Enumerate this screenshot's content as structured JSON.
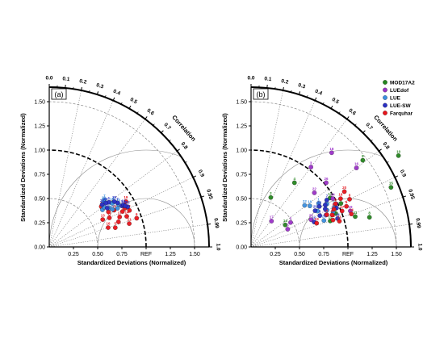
{
  "figure": {
    "panels": [
      {
        "letter": "(a)",
        "legend": false
      },
      {
        "letter": "(b)",
        "legend": true
      }
    ],
    "common": {
      "xlabel": "Standardized Deviations (Normalized)",
      "ylabel": "Standardized Deviations (Normalized)",
      "correlation_label": "Correlation",
      "ref_label": "REF",
      "sd_ticks": [
        "0.00",
        "0.25",
        "0.50",
        "0.75",
        "1.00",
        "1.25",
        "1.50"
      ],
      "x_ticks": [
        "0.25",
        "0.50",
        "0.75",
        "1.00",
        "1.25",
        "1.50"
      ],
      "corr_ticks": [
        "0.0",
        "0.1",
        "0.2",
        "0.3",
        "0.4",
        "0.5",
        "0.6",
        "0.7",
        "0.8",
        "0.9",
        "0.95",
        "0.99",
        "1.0"
      ]
    }
  },
  "chart_data": [
    {
      "type": "scatter",
      "subtype": "taylor-diagram",
      "panel": "(a)",
      "xlabel": "Standardized Deviations (Normalized)",
      "ylabel": "Standardized Deviations (Normalized)",
      "sd_range": [
        0,
        1.65
      ],
      "reference_sd": 1.0,
      "colors": {
        "Farquhar": "#e8141b",
        "LUE": "#3a8fe0",
        "LUE-SW": "#2a2fc4"
      },
      "series": [
        {
          "name": "Farquhar",
          "points": [
            {
              "sd": 0.92,
              "r": 0.86,
              "label": "19"
            },
            {
              "sd": 0.79,
              "r": 0.92,
              "label": "17"
            },
            {
              "sd": 0.86,
              "r": 0.93,
              "label": "14"
            },
            {
              "sd": 0.62,
              "r": 0.89,
              "label": "13"
            },
            {
              "sd": 0.95,
              "r": 0.95,
              "label": "6"
            },
            {
              "sd": 0.71,
              "r": 0.86,
              "label": "12"
            },
            {
              "sd": 0.68,
              "r": 0.79,
              "label": "4"
            },
            {
              "sd": 0.84,
              "r": 0.9,
              "label": "8"
            },
            {
              "sd": 0.88,
              "r": 0.89,
              "label": "20"
            },
            {
              "sd": 0.76,
              "r": 0.94,
              "label": "9"
            },
            {
              "sd": 0.64,
              "r": 0.95,
              "label": "16"
            },
            {
              "sd": 0.86,
              "r": 0.96,
              "label": "21"
            },
            {
              "sd": 0.71,
              "r": 0.96,
              "label": "5"
            },
            {
              "sd": 0.91,
              "r": 0.91,
              "label": "2"
            },
            {
              "sd": 0.69,
              "r": 0.9,
              "label": "11"
            },
            {
              "sd": 0.77,
              "r": 0.87,
              "label": "15"
            }
          ]
        },
        {
          "name": "LUE",
          "points": [
            {
              "sd": 0.81,
              "r": 0.82,
              "label": "1"
            },
            {
              "sd": 0.74,
              "r": 0.84,
              "label": "3"
            },
            {
              "sd": 0.75,
              "r": 0.76,
              "label": "7"
            },
            {
              "sd": 0.79,
              "r": 0.82,
              "label": "10"
            },
            {
              "sd": 0.76,
              "r": 0.86,
              "label": "18"
            },
            {
              "sd": 0.73,
              "r": 0.77,
              "label": "22"
            },
            {
              "sd": 0.67,
              "r": 0.82,
              "label": "23"
            },
            {
              "sd": 0.81,
              "r": 0.87,
              "label": "24"
            },
            {
              "sd": 0.84,
              "r": 0.85,
              "label": "25"
            },
            {
              "sd": 0.7,
              "r": 0.81,
              "label": "26"
            }
          ]
        },
        {
          "name": "LUE-SW",
          "points": [
            {
              "sd": 0.77,
              "r": 0.8,
              "label": "1"
            },
            {
              "sd": 0.86,
              "r": 0.87,
              "label": "3"
            },
            {
              "sd": 0.84,
              "r": 0.84,
              "label": "7"
            },
            {
              "sd": 0.74,
              "r": 0.79,
              "label": "10"
            },
            {
              "sd": 0.88,
              "r": 0.87,
              "label": "18"
            },
            {
              "sd": 0.72,
              "r": 0.83,
              "label": "22"
            },
            {
              "sd": 0.91,
              "r": 0.89,
              "label": "23"
            },
            {
              "sd": 0.7,
              "r": 0.78,
              "label": "24"
            },
            {
              "sd": 0.82,
              "r": 0.82,
              "label": "25"
            },
            {
              "sd": 0.89,
              "r": 0.88,
              "label": "26"
            }
          ]
        }
      ]
    },
    {
      "type": "scatter",
      "subtype": "taylor-diagram",
      "panel": "(b)",
      "xlabel": "Standardized Deviations (Normalized)",
      "ylabel": "Standardized Deviations (Normalized)",
      "sd_range": [
        0,
        1.65
      ],
      "reference_sd": 1.0,
      "legend": {
        "position": "top-right",
        "entries": [
          "MOD17A2",
          "LUEdof",
          "LUE",
          "LUE-SW",
          "Farquhar"
        ]
      },
      "colors": {
        "MOD17A2": "#25851f",
        "LUEdof": "#9b32c8",
        "LUE": "#3a8fe0",
        "LUE-SW": "#2a2fc4",
        "Farquhar": "#e8141b"
      },
      "series": [
        {
          "name": "MOD17A2",
          "points": [
            {
              "sd": 1.79,
              "r": 0.85,
              "label": "10"
            },
            {
              "sd": 1.46,
              "r": 0.79,
              "label": "9"
            },
            {
              "sd": 1.57,
              "r": 0.92,
              "label": "15"
            },
            {
              "sd": 1.26,
              "r": 0.97,
              "label": "8"
            },
            {
              "sd": 0.55,
              "r": 0.37,
              "label": "2"
            },
            {
              "sd": 0.94,
              "r": 0.93,
              "label": "6"
            },
            {
              "sd": 1.03,
              "r": 0.9,
              "label": "7"
            },
            {
              "sd": 1.12,
              "r": 0.96,
              "label": "11"
            },
            {
              "sd": 0.8,
              "r": 0.56,
              "label": "4"
            },
            {
              "sd": 0.96,
              "r": 0.85,
              "label": "12"
            },
            {
              "sd": 0.86,
              "r": 0.95,
              "label": "13"
            },
            {
              "sd": 0.42,
              "r": 0.84,
              "label": "14"
            }
          ]
        },
        {
          "name": "LUEdof",
          "points": [
            {
              "sd": 1.28,
              "r": 0.65,
              "label": "18"
            },
            {
              "sd": 1.36,
              "r": 0.8,
              "label": "16"
            },
            {
              "sd": 1.03,
              "r": 0.6,
              "label": "3"
            },
            {
              "sd": 0.86,
              "r": 0.76,
              "label": "22"
            },
            {
              "sd": 0.48,
              "r": 0.85,
              "label": "1"
            },
            {
              "sd": 0.42,
              "r": 0.9,
              "label": "5"
            },
            {
              "sd": 0.34,
              "r": 0.62,
              "label": "17"
            },
            {
              "sd": 0.98,
              "r": 0.86,
              "label": "24"
            },
            {
              "sd": 1.09,
              "r": 0.94,
              "label": "19"
            },
            {
              "sd": 0.68,
              "r": 0.91,
              "label": "20"
            },
            {
              "sd": 0.84,
              "r": 0.92,
              "label": "21"
            },
            {
              "sd": 1.02,
              "r": 0.76,
              "label": "26"
            }
          ]
        },
        {
          "name": "LUE",
          "points": [
            {
              "sd": 0.83,
              "r": 0.84,
              "label": "1"
            },
            {
              "sd": 0.78,
              "r": 0.88,
              "label": "3"
            },
            {
              "sd": 0.87,
              "r": 0.9,
              "label": "7"
            },
            {
              "sd": 0.74,
              "r": 0.82,
              "label": "10"
            },
            {
              "sd": 0.92,
              "r": 0.92,
              "label": "18"
            },
            {
              "sd": 0.7,
              "r": 0.79,
              "label": "22"
            },
            {
              "sd": 0.8,
              "r": 0.94,
              "label": "23"
            },
            {
              "sd": 0.9,
              "r": 0.87,
              "label": "24"
            },
            {
              "sd": 0.96,
              "r": 0.9,
              "label": "25"
            }
          ]
        },
        {
          "name": "LUE-SW",
          "points": [
            {
              "sd": 0.88,
              "r": 0.87,
              "label": "1"
            },
            {
              "sd": 0.78,
              "r": 0.91,
              "label": "3"
            },
            {
              "sd": 0.92,
              "r": 0.85,
              "label": "7"
            },
            {
              "sd": 0.7,
              "r": 0.93,
              "label": "10"
            },
            {
              "sd": 0.97,
              "r": 0.91,
              "label": "18"
            },
            {
              "sd": 0.82,
              "r": 0.86,
              "label": "22"
            },
            {
              "sd": 0.86,
              "r": 0.89,
              "label": "23"
            },
            {
              "sd": 0.94,
              "r": 0.95,
              "label": "24"
            },
            {
              "sd": 0.76,
              "r": 0.87,
              "label": "25"
            }
          ]
        },
        {
          "name": "Farquhar",
          "points": [
            {
              "sd": 0.94,
              "r": 0.91,
              "label": "19"
            },
            {
              "sd": 1.01,
              "r": 0.93,
              "label": "17"
            },
            {
              "sd": 1.09,
              "r": 0.95,
              "label": "14"
            },
            {
              "sd": 0.72,
              "r": 0.94,
              "label": "13"
            },
            {
              "sd": 1.07,
              "r": 0.92,
              "label": "6"
            },
            {
              "sd": 0.89,
              "r": 0.95,
              "label": "12"
            },
            {
              "sd": 0.85,
              "r": 0.92,
              "label": "4"
            },
            {
              "sd": 1.13,
              "r": 0.9,
              "label": "8"
            },
            {
              "sd": 1.12,
              "r": 0.86,
              "label": "20"
            },
            {
              "sd": 0.98,
              "r": 0.89,
              "label": "9"
            },
            {
              "sd": 1.05,
              "r": 0.88,
              "label": "16"
            },
            {
              "sd": 0.95,
              "r": 0.96,
              "label": "21"
            },
            {
              "sd": 0.9,
              "r": 0.93,
              "label": "5"
            }
          ]
        }
      ]
    }
  ]
}
